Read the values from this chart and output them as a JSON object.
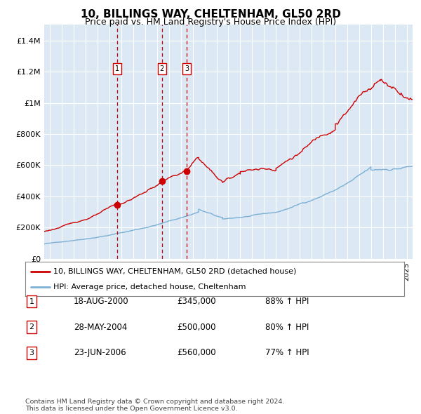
{
  "title": "10, BILLINGS WAY, CHELTENHAM, GL50 2RD",
  "subtitle": "Price paid vs. HM Land Registry's House Price Index (HPI)",
  "xlim": [
    1994.5,
    2025.5
  ],
  "ylim": [
    0,
    1500000
  ],
  "yticks": [
    0,
    200000,
    400000,
    600000,
    800000,
    1000000,
    1200000,
    1400000
  ],
  "ytick_labels": [
    "£0",
    "£200K",
    "£400K",
    "£600K",
    "£800K",
    "£1M",
    "£1.2M",
    "£1.4M"
  ],
  "plot_bg": "#dce9f5",
  "grid_color": "#ffffff",
  "red_line_color": "#cc0000",
  "blue_line_color": "#7bafd4",
  "sale_marker_color": "#cc0000",
  "vline_color": "#cc0000",
  "sales": [
    {
      "num": 1,
      "year": 2000.63,
      "price": 345000,
      "label": "1"
    },
    {
      "num": 2,
      "year": 2004.41,
      "price": 500000,
      "label": "2"
    },
    {
      "num": 3,
      "year": 2006.48,
      "price": 560000,
      "label": "3"
    }
  ],
  "legend_line1": "10, BILLINGS WAY, CHELTENHAM, GL50 2RD (detached house)",
  "legend_line2": "HPI: Average price, detached house, Cheltenham",
  "table_rows": [
    [
      "1",
      "18-AUG-2000",
      "£345,000",
      "88% ↑ HPI"
    ],
    [
      "2",
      "28-MAY-2004",
      "£500,000",
      "80% ↑ HPI"
    ],
    [
      "3",
      "23-JUN-2006",
      "£560,000",
      "77% ↑ HPI"
    ]
  ],
  "footer": "Contains HM Land Registry data © Crown copyright and database right 2024.\nThis data is licensed under the Open Government Licence v3.0."
}
